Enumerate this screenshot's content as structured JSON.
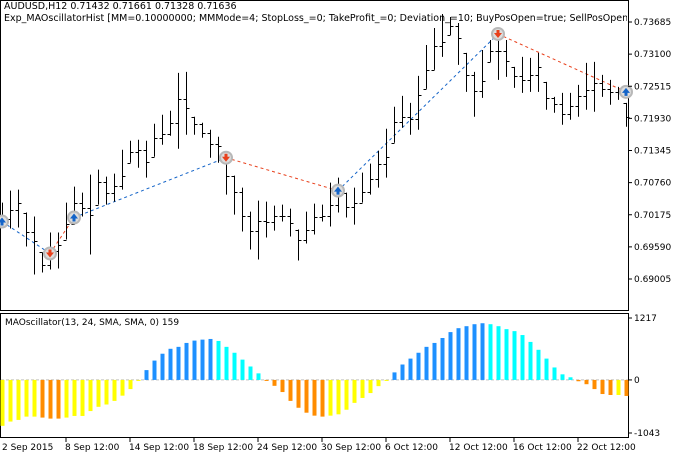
{
  "header": {
    "symbol_line": "AUDUSD,H12  0.71432 0.71661 0.71328 0.71636",
    "expert_line": "Exp_MAOscillatorHist [MM=0.10000000; MMMode=4; StopLoss_=0; TakeProfit_=0; Deviation_=10; BuyPosOpen=true; SellPosOpen=true; BuyPos"
  },
  "indicator": {
    "label": "MAOscillator(13, 24, SMA, SMA, 0) 159"
  },
  "colors": {
    "bars": "#000000",
    "buy": "#1464C8",
    "sell": "#E8401C",
    "hist_up_rising": "#1E90FF",
    "hist_up_falling": "#00FFFF",
    "hist_down_falling": "#FF8C00",
    "hist_down_rising": "#FFFF00",
    "zero_line": "#C0C0C0"
  },
  "chart_data": [
    {
      "type": "ohlc",
      "symbol": "AUDUSD",
      "timeframe": "H12",
      "y_ticks": [
        "0.73685",
        "0.73100",
        "0.72515",
        "0.71930",
        "0.71345",
        "0.70760",
        "0.70175",
        "0.69590",
        "0.69005"
      ],
      "x_ticks": [
        "2 Sep 2015",
        "8 Sep 12:00",
        "14 Sep 12:00",
        "18 Sep 12:00",
        "24 Sep 12:00",
        "30 Sep 12:00",
        "6 Oct 12:00",
        "12 Oct 12:00",
        "16 Oct 12:00",
        "22 Oct 12:00"
      ],
      "high": [
        0.70396,
        0.70614,
        0.70632,
        0.70215,
        0.70142,
        0.69488,
        0.69851,
        0.69851,
        0.70396,
        0.70687,
        0.70578,
        0.70905,
        0.70996,
        0.70869,
        0.70923,
        0.71359,
        0.71523,
        0.71541,
        0.71523,
        0.71832,
        0.71995,
        0.72068,
        0.72758,
        0.72776,
        0.71959,
        0.7185,
        0.71723,
        0.71595,
        0.71323,
        0.70887,
        0.70669,
        0.70233,
        0.70433,
        0.70414,
        0.70342,
        0.7036,
        0.70287,
        0.69906,
        0.70233,
        0.70378,
        0.7036,
        0.7076,
        0.7085,
        0.70578,
        0.70669,
        0.70941,
        0.71105,
        0.71341,
        0.71741,
        0.72141,
        0.7234,
        0.72213,
        0.72704,
        0.73267,
        0.73576,
        0.7383,
        0.73776,
        0.73667,
        0.73122,
        0.72776,
        0.73176,
        0.73358,
        0.73449,
        0.73358,
        0.72867,
        0.73049,
        0.73031,
        0.73122,
        0.72595,
        0.72322,
        0.72395,
        0.72395,
        0.7254,
        0.7294,
        0.72958,
        0.72722,
        0.72631,
        0.72504,
        0.72213
      ],
      "low": [
        0.69942,
        0.69924,
        0.69942,
        0.69597,
        0.69088,
        0.69124,
        0.69179,
        0.69197,
        0.69724,
        0.69996,
        0.70142,
        0.69451,
        0.7036,
        0.7036,
        0.70414,
        0.70632,
        0.71123,
        0.71032,
        0.7085,
        0.71232,
        0.7145,
        0.71614,
        0.71377,
        0.71632,
        0.71632,
        0.71577,
        0.71214,
        0.71123,
        0.70542,
        0.70178,
        0.69869,
        0.69542,
        0.69361,
        0.6976,
        0.69887,
        0.70051,
        0.69778,
        0.69342,
        0.69651,
        0.69815,
        0.70051,
        0.6996,
        0.70215,
        0.70124,
        0.69996,
        0.70396,
        0.70542,
        0.70669,
        0.7085,
        0.71486,
        0.71759,
        0.71632,
        0.71723,
        0.72468,
        0.72813,
        0.73049,
        0.73449,
        0.72904,
        0.72413,
        0.71959,
        0.72304,
        0.72958,
        0.72631,
        0.72686,
        0.72486,
        0.72395,
        0.72413,
        0.72413,
        0.72086,
        0.72032,
        0.71813,
        0.71904,
        0.71959,
        0.72086,
        0.7205,
        0.72322,
        0.72177,
        0.72268,
        0.71777
      ],
      "trades": [
        {
          "bar": 0,
          "type": "buy",
          "price": 0.70051
        },
        {
          "bar": 6,
          "type": "sell",
          "price": 0.6947
        },
        {
          "bar": 9,
          "type": "buy",
          "price": 0.70124
        },
        {
          "bar": 28,
          "type": "sell",
          "price": 0.71214
        },
        {
          "bar": 42,
          "type": "buy",
          "price": 0.70614
        },
        {
          "bar": 62,
          "type": "sell",
          "price": 0.73467
        },
        {
          "bar": 78,
          "type": "buy",
          "price": 0.72413
        }
      ]
    },
    {
      "type": "bar",
      "name": "MAOscillator(13, 24, SMA, SMA, 0)",
      "y_ticks": [
        "1217",
        "0",
        "-1043"
      ],
      "ylim": [
        -1043,
        1217
      ],
      "values": [
        -902,
        -818,
        -786,
        -721,
        -721,
        -740,
        -760,
        -760,
        -740,
        -708,
        -708,
        -612,
        -528,
        -483,
        -412,
        -309,
        -180,
        0,
        193,
        380,
        515,
        612,
        650,
        727,
        773,
        792,
        805,
        766,
        650,
        534,
        399,
        264,
        129,
        -13,
        -116,
        -238,
        -412,
        -547,
        -644,
        -702,
        -721,
        -702,
        -676,
        -586,
        -451,
        -354,
        -258,
        -122,
        -6,
        148,
        303,
        419,
        534,
        650,
        727,
        824,
        940,
        1017,
        1056,
        1095,
        1114,
        1095,
        1056,
        998,
        959,
        882,
        747,
        592,
        419,
        245,
        110,
        52,
        -26,
        -84,
        -180,
        -277,
        -296,
        -296,
        -315
      ],
      "color_codes": "YYYYYOOOYYYYYYYYYYBBBBBBBBBCCCCCCOOOOOOOOYYYYYYYYBBBBBBBBBBBBCCCCCCCCCCCOOOOOYO"
    }
  ]
}
